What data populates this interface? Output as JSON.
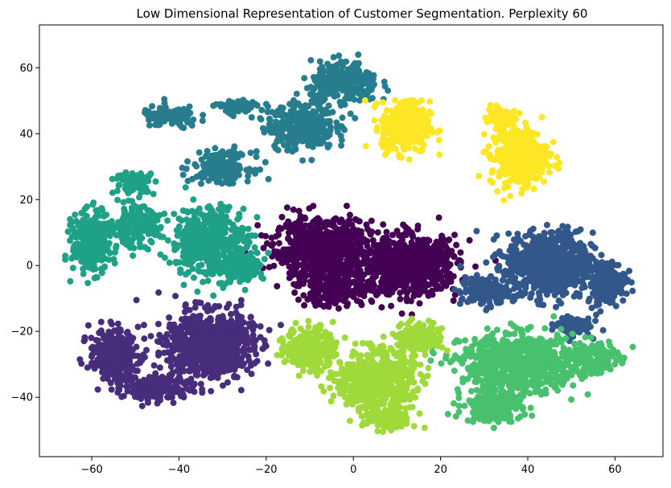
{
  "chart_data": {
    "type": "scatter",
    "title": "Low Dimensional Representation of Customer Segmentation. Perplexity 60",
    "xlabel": "",
    "ylabel": "",
    "xlim": [
      -72,
      71
    ],
    "ylim": [
      -58,
      73
    ],
    "xticks": [
      -60,
      -40,
      -20,
      0,
      20,
      40,
      60
    ],
    "yticks": [
      -40,
      -20,
      0,
      20,
      40,
      60
    ],
    "xtick_labels": [
      "−60",
      "−40",
      "−20",
      "0",
      "20",
      "40",
      "60"
    ],
    "ytick_labels": [
      "−40",
      "−20",
      "0",
      "20",
      "40",
      "60"
    ],
    "grid": false,
    "legend": "none",
    "colormap": "viridis",
    "series": [
      {
        "color": "#440154",
        "clusters": [
          {
            "center": [
              -7,
              5
            ],
            "spread": [
              10,
              8
            ],
            "count": 700
          },
          {
            "center": [
              13,
              0
            ],
            "spread": [
              10,
              8
            ],
            "count": 700
          },
          {
            "center": [
              -4,
              -7
            ],
            "spread": [
              8,
              5
            ],
            "count": 200
          }
        ]
      },
      {
        "color": "#472d7b",
        "clusters": [
          {
            "center": [
              -33,
              -24
            ],
            "spread": [
              9,
              9
            ],
            "count": 800
          },
          {
            "center": [
              -55,
              -27
            ],
            "spread": [
              5,
              7
            ],
            "count": 300
          },
          {
            "center": [
              -45,
              -37
            ],
            "spread": [
              7,
              4
            ],
            "count": 150
          }
        ]
      },
      {
        "color": "#31578b",
        "clusters": [
          {
            "center": [
              45,
              0
            ],
            "spread": [
              9,
              9
            ],
            "count": 700
          },
          {
            "center": [
              58,
              -5
            ],
            "spread": [
              4,
              6
            ],
            "count": 200
          },
          {
            "center": [
              30,
              -8
            ],
            "spread": [
              5,
              4
            ],
            "count": 150
          },
          {
            "center": [
              50,
              -18
            ],
            "spread": [
              4,
              3
            ],
            "count": 80
          }
        ]
      },
      {
        "color": "#277d8e",
        "clusters": [
          {
            "center": [
              -12,
              42
            ],
            "spread": [
              7,
              6
            ],
            "count": 350
          },
          {
            "center": [
              -2,
              55
            ],
            "spread": [
              7,
              6
            ],
            "count": 250
          },
          {
            "center": [
              -42,
              45
            ],
            "spread": [
              6,
              3
            ],
            "count": 120
          },
          {
            "center": [
              -30,
              30
            ],
            "spread": [
              6,
              4
            ],
            "count": 200
          },
          {
            "center": [
              -27,
              48
            ],
            "spread": [
              4,
              2
            ],
            "count": 80
          }
        ]
      },
      {
        "color": "#1fa187",
        "clusters": [
          {
            "center": [
              -60,
              7
            ],
            "spread": [
              4,
              8
            ],
            "count": 350
          },
          {
            "center": [
              -33,
              7
            ],
            "spread": [
              8,
              10
            ],
            "count": 450
          },
          {
            "center": [
              -50,
              12
            ],
            "spread": [
              5,
              5
            ],
            "count": 200
          },
          {
            "center": [
              -50,
              25
            ],
            "spread": [
              4,
              3
            ],
            "count": 100
          },
          {
            "center": [
              -25,
              0
            ],
            "spread": [
              4,
              4
            ],
            "count": 150
          }
        ]
      },
      {
        "color": "#48c16e",
        "clusters": [
          {
            "center": [
              38,
              -30
            ],
            "spread": [
              12,
              8
            ],
            "count": 750
          },
          {
            "center": [
              32,
              -43
            ],
            "spread": [
              6,
              4
            ],
            "count": 200
          },
          {
            "center": [
              55,
              -28
            ],
            "spread": [
              5,
              5
            ],
            "count": 150
          }
        ]
      },
      {
        "color": "#9fda3a",
        "clusters": [
          {
            "center": [
              5,
              -35
            ],
            "spread": [
              8,
              8
            ],
            "count": 600
          },
          {
            "center": [
              -10,
              -25
            ],
            "spread": [
              5,
              6
            ],
            "count": 250
          },
          {
            "center": [
              15,
              -22
            ],
            "spread": [
              5,
              4
            ],
            "count": 150
          },
          {
            "center": [
              8,
              -47
            ],
            "spread": [
              5,
              3
            ],
            "count": 120
          }
        ]
      },
      {
        "color": "#fde725",
        "clusters": [
          {
            "center": [
              12,
              42
            ],
            "spread": [
              5,
              7
            ],
            "count": 350
          },
          {
            "center": [
              38,
              33
            ],
            "spread": [
              6,
              8
            ],
            "count": 350
          },
          {
            "center": [
              34,
              45
            ],
            "spread": [
              3,
              3
            ],
            "count": 80
          }
        ]
      }
    ]
  }
}
